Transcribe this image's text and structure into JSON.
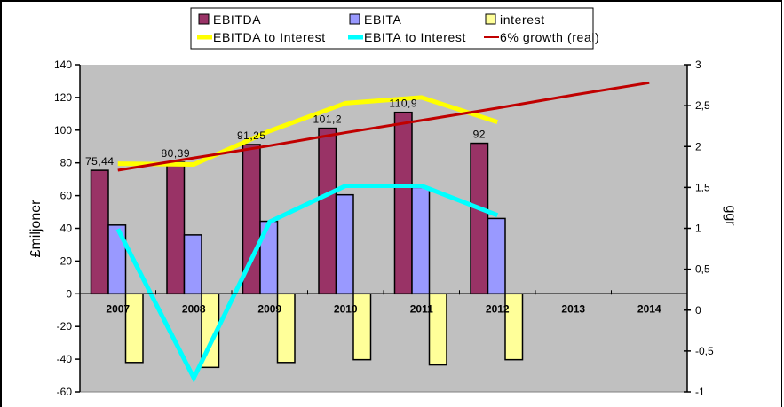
{
  "chart_data": {
    "type": "bar",
    "title": "",
    "categories": [
      "2007",
      "2008",
      "2009",
      "2010",
      "2011",
      "2012",
      "2013",
      "2014"
    ],
    "ylabel": "£miljoner",
    "y2label": "ggr",
    "ylim": [
      -60,
      140
    ],
    "y2lim": [
      -1,
      3
    ],
    "yticks": [
      "140",
      "120",
      "100",
      "80",
      "60",
      "40",
      "20",
      "0",
      "-20",
      "-40",
      "-60"
    ],
    "y2ticks": [
      "3",
      "2,5",
      "2",
      "1,5",
      "1",
      "0,5",
      "0",
      "-0,5",
      "-1"
    ],
    "grid": false,
    "legend_placement": "top-center",
    "bar_series": [
      {
        "name": "EBITDA",
        "color": "#993366",
        "axis": "left",
        "values": [
          75.44,
          80.39,
          91.25,
          101.2,
          110.9,
          92,
          null,
          null
        ],
        "labels": [
          "75,44",
          "80,39",
          "91,25",
          "101,2",
          "110,9",
          "92",
          "",
          ""
        ]
      },
      {
        "name": "EBITA",
        "color": "#9999FF",
        "axis": "left",
        "values": [
          42,
          36,
          44.3,
          60.5,
          65,
          46,
          null,
          null
        ]
      },
      {
        "name": "interest",
        "color": "#FFFF99",
        "axis": "left",
        "values": [
          -42,
          -45,
          -42,
          -40.3,
          -43.5,
          -40.3,
          null,
          null
        ]
      }
    ],
    "line_series": [
      {
        "name": "EBITDA to Interest",
        "color": "#FFFF00",
        "axis": "right",
        "values": [
          1.79,
          1.78,
          2.19,
          2.53,
          2.6,
          2.3,
          null,
          null
        ]
      },
      {
        "name": "EBITA to Interest",
        "color": "#00FFFF",
        "axis": "right",
        "values": [
          0.99,
          -0.83,
          1.08,
          1.52,
          1.52,
          1.16,
          null,
          null
        ]
      },
      {
        "name": "6% growth (real)",
        "color": "#C00000",
        "axis": "right",
        "values": [
          1.71,
          1.86,
          2.01,
          2.17,
          2.32,
          2.47,
          2.63,
          2.78
        ]
      }
    ],
    "legend": [
      "EBITDA",
      "EBITA",
      "interest",
      "EBITDA to Interest",
      "EBITA to Interest",
      "6% growth (real)"
    ]
  }
}
